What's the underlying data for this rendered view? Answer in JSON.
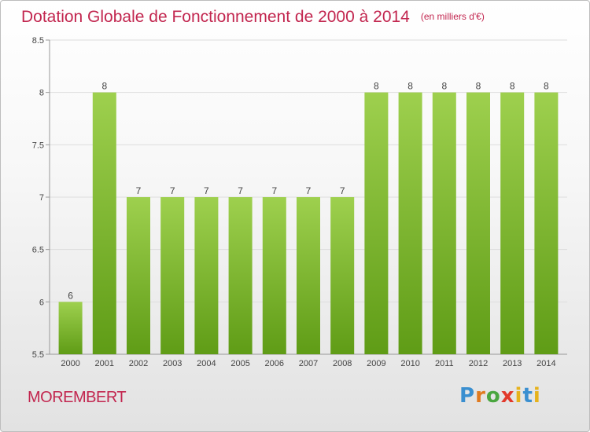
{
  "header": {
    "title": "Dotation Globale de Fonctionnement de 2000 à 2014",
    "subtitle": "(en milliers d'€)"
  },
  "footer": {
    "commune": "MOREMBERT",
    "logo_text": "Proxiti"
  },
  "colors": {
    "bar_light": "#9ed04e",
    "bar_dark": "#5f9c16",
    "title": "#c2264f",
    "axis_text": "#444444",
    "grid": "#dddddd"
  },
  "chart_data": {
    "type": "bar",
    "title": "Dotation Globale de Fonctionnement de 2000 à 2014",
    "subtitle": "(en milliers d'€)",
    "categories": [
      "2000",
      "2001",
      "2002",
      "2003",
      "2004",
      "2005",
      "2006",
      "2007",
      "2008",
      "2009",
      "2010",
      "2011",
      "2012",
      "2013",
      "2014"
    ],
    "values": [
      6,
      8,
      7,
      7,
      7,
      7,
      7,
      7,
      7,
      8,
      8,
      8,
      8,
      8,
      8
    ],
    "value_labels": [
      "6",
      "8",
      "7",
      "7",
      "7",
      "7",
      "7",
      "7",
      "7",
      "8",
      "8",
      "8",
      "8",
      "8",
      "8"
    ],
    "ylim": [
      5.5,
      8.5
    ],
    "yticks": [
      5.5,
      6,
      6.5,
      7,
      7.5,
      8,
      8.5
    ],
    "ytick_labels": [
      "5.5",
      "6",
      "6.5",
      "7",
      "7.5",
      "8",
      "8.5"
    ],
    "xlabel": "",
    "ylabel": "",
    "grid": true
  }
}
